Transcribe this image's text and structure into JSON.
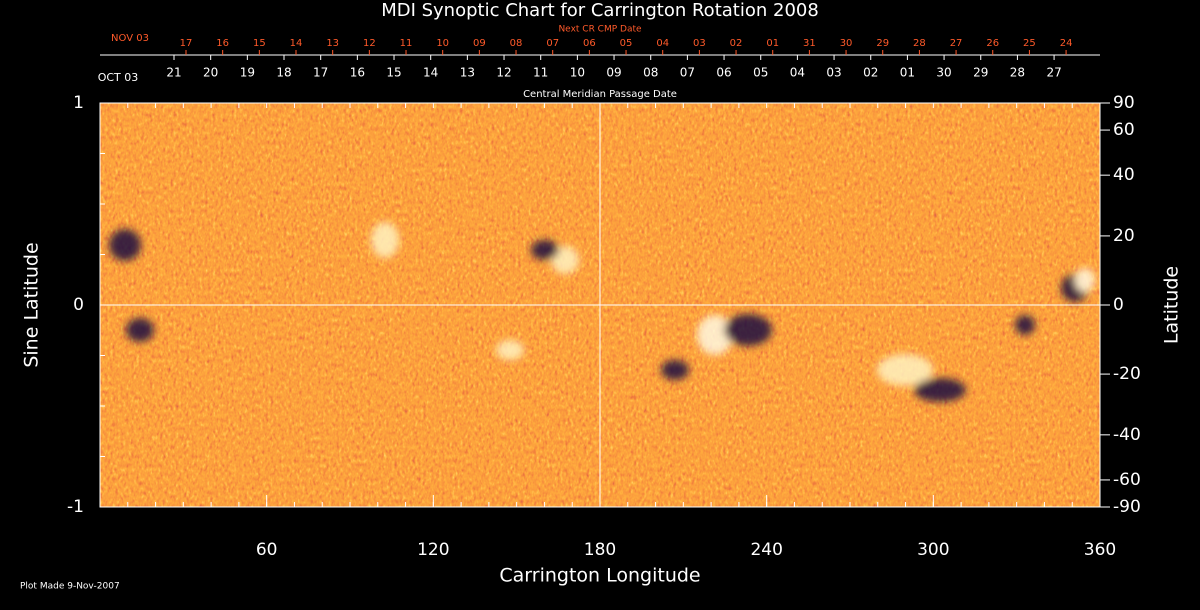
{
  "chart_data": {
    "type": "heatmap",
    "title": "MDI Synoptic Chart for Carrington Rotation 2008",
    "x_label": "Carrington Longitude",
    "y_label": "Sine Latitude",
    "y2_label": "Latitude",
    "xlim": [
      0,
      360
    ],
    "xticks": [
      60,
      120,
      180,
      240,
      300,
      360
    ],
    "ylim": [
      -1,
      1
    ],
    "yticks": [
      -1,
      0,
      1
    ],
    "y2_scale": "sine",
    "y2ticks": [
      90,
      60,
      40,
      20,
      0,
      -20,
      -40,
      -60,
      -90
    ],
    "guide_x": 180,
    "guide_y": 0,
    "cmp_axis": {
      "label": "Central Meridian Passage Date",
      "start": "OCT 03",
      "days": [
        "21",
        "20",
        "19",
        "18",
        "17",
        "16",
        "15",
        "14",
        "13",
        "12",
        "11",
        "10",
        "09",
        "08",
        "07",
        "06",
        "05",
        "04",
        "03",
        "02",
        "01",
        "30",
        "29",
        "28",
        "27"
      ]
    },
    "next_cmp_axis": {
      "label": "Next CR CMP Date",
      "start": "NOV 03",
      "days": [
        "17",
        "16",
        "15",
        "14",
        "13",
        "12",
        "11",
        "10",
        "09",
        "08",
        "07",
        "06",
        "05",
        "04",
        "03",
        "02",
        "01",
        "31",
        "30",
        "29",
        "28",
        "27",
        "26",
        "25",
        "24"
      ]
    },
    "footer": "Plot Made  9-Nov-2007"
  }
}
